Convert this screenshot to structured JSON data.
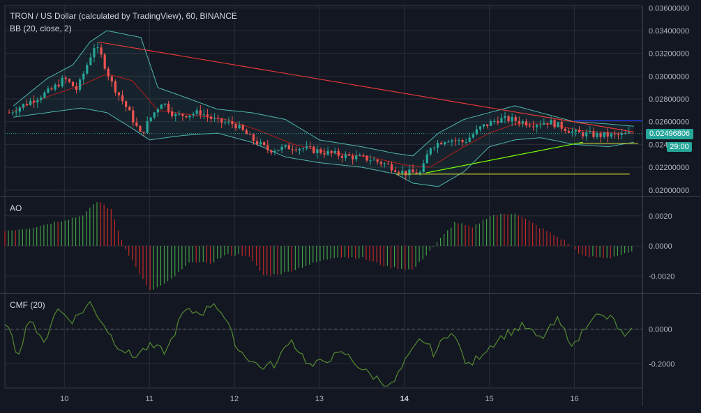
{
  "header": {
    "title": "TRON / US Dollar (calculated by TradingView), 60, BINANCE",
    "bb_label": "BB (20, close, 2)",
    "ao_label": "AO",
    "cmf_label": "CMF (20)"
  },
  "price_tag": "0.02496806",
  "countdown_tag": "29:00",
  "colors": {
    "background": "#131722",
    "grid": "#2a2e39",
    "up": "#26a69a",
    "down": "#ef5350",
    "bb_band": "#4db6ac",
    "bb_basis": "#b71c1c",
    "trend_red": "#e53935",
    "trend_green": "#76ff03",
    "support_yellow": "#c0ca33",
    "ao_up": "#43a047",
    "ao_down": "#c62828",
    "cmf": "#558b2f",
    "blue_line": "#1e3cff"
  },
  "chart_data": [
    {
      "type": "candlestick",
      "title": "TRON / US Dollar (calculated by TradingView), 60, BINANCE",
      "indicator": "BB (20, close, 2)",
      "x_tick_labels": [
        "10",
        "11",
        "12",
        "13",
        "14",
        "15",
        "16"
      ],
      "y_tick_labels": [
        "0.03600000",
        "0.03400000",
        "0.03200000",
        "0.03000000",
        "0.02800000",
        "0.02600000",
        "0.02400000",
        "0.02200000",
        "0.02000000"
      ],
      "ylim": [
        0.0195,
        0.0362
      ],
      "x_range_days": [
        9.3,
        16.8
      ],
      "last_price": 0.02496806,
      "candle_anchors": [
        [
          9.35,
          0.0268
        ],
        [
          9.7,
          0.0282
        ],
        [
          9.85,
          0.0288
        ],
        [
          10.0,
          0.0298
        ],
        [
          10.15,
          0.0288
        ],
        [
          10.35,
          0.0326
        ],
        [
          10.42,
          0.032
        ],
        [
          10.55,
          0.0295
        ],
        [
          10.75,
          0.027
        ],
        [
          10.9,
          0.0248
        ],
        [
          11.0,
          0.0262
        ],
        [
          11.15,
          0.0278
        ],
        [
          11.3,
          0.0265
        ],
        [
          11.6,
          0.0268
        ],
        [
          11.8,
          0.026
        ],
        [
          12.0,
          0.0258
        ],
        [
          12.2,
          0.0245
        ],
        [
          12.4,
          0.0235
        ],
        [
          12.7,
          0.0238
        ],
        [
          13.0,
          0.0234
        ],
        [
          13.3,
          0.023
        ],
        [
          13.6,
          0.0227
        ],
        [
          13.8,
          0.0222
        ],
        [
          14.0,
          0.0215
        ],
        [
          14.2,
          0.0215
        ],
        [
          14.3,
          0.0238
        ],
        [
          14.5,
          0.0245
        ],
        [
          14.7,
          0.0242
        ],
        [
          14.9,
          0.0255
        ],
        [
          15.1,
          0.0262
        ],
        [
          15.25,
          0.0262
        ],
        [
          15.5,
          0.0258
        ],
        [
          15.7,
          0.026
        ],
        [
          15.9,
          0.0254
        ],
        [
          16.0,
          0.025
        ],
        [
          16.3,
          0.0248
        ],
        [
          16.55,
          0.0248
        ],
        [
          16.7,
          0.02497
        ]
      ],
      "bb_upper_anchors": [
        [
          9.4,
          0.0274
        ],
        [
          9.8,
          0.0298
        ],
        [
          10.1,
          0.031
        ],
        [
          10.3,
          0.033
        ],
        [
          10.5,
          0.034
        ],
        [
          10.9,
          0.0334
        ],
        [
          11.1,
          0.029
        ],
        [
          11.4,
          0.0282
        ],
        [
          11.8,
          0.0271
        ],
        [
          12.2,
          0.0268
        ],
        [
          12.6,
          0.0262
        ],
        [
          13.0,
          0.0244
        ],
        [
          13.5,
          0.0238
        ],
        [
          13.9,
          0.0232
        ],
        [
          14.1,
          0.023
        ],
        [
          14.4,
          0.025
        ],
        [
          14.7,
          0.0262
        ],
        [
          15.0,
          0.0268
        ],
        [
          15.3,
          0.0274
        ],
        [
          15.6,
          0.0268
        ],
        [
          16.0,
          0.026
        ],
        [
          16.4,
          0.0258
        ],
        [
          16.7,
          0.0256
        ]
      ],
      "bb_lower_anchors": [
        [
          9.4,
          0.0264
        ],
        [
          9.8,
          0.0268
        ],
        [
          10.2,
          0.0272
        ],
        [
          10.5,
          0.0268
        ],
        [
          10.8,
          0.0254
        ],
        [
          11.0,
          0.0244
        ],
        [
          11.4,
          0.0248
        ],
        [
          11.8,
          0.025
        ],
        [
          12.2,
          0.0242
        ],
        [
          12.6,
          0.0229
        ],
        [
          13.0,
          0.0224
        ],
        [
          13.5,
          0.022
        ],
        [
          13.9,
          0.0214
        ],
        [
          14.1,
          0.0206
        ],
        [
          14.4,
          0.0203
        ],
        [
          14.7,
          0.0216
        ],
        [
          15.0,
          0.0238
        ],
        [
          15.3,
          0.0244
        ],
        [
          15.6,
          0.0246
        ],
        [
          16.0,
          0.024
        ],
        [
          16.4,
          0.0238
        ],
        [
          16.7,
          0.0242
        ]
      ],
      "bb_basis_anchors": [
        [
          9.4,
          0.0269
        ],
        [
          9.8,
          0.0282
        ],
        [
          10.2,
          0.0292
        ],
        [
          10.5,
          0.0302
        ],
        [
          10.8,
          0.0296
        ],
        [
          11.1,
          0.027
        ],
        [
          11.5,
          0.0266
        ],
        [
          11.9,
          0.0262
        ],
        [
          12.3,
          0.0252
        ],
        [
          12.7,
          0.024
        ],
        [
          13.1,
          0.0233
        ],
        [
          13.6,
          0.0229
        ],
        [
          14.0,
          0.0222
        ],
        [
          14.3,
          0.022
        ],
        [
          14.7,
          0.0238
        ],
        [
          15.0,
          0.025
        ],
        [
          15.3,
          0.0258
        ],
        [
          15.7,
          0.0258
        ],
        [
          16.1,
          0.0252
        ],
        [
          16.5,
          0.025
        ],
        [
          16.7,
          0.025
        ]
      ],
      "trendlines": [
        {
          "color": "red",
          "from": [
            10.4,
            0.033
          ],
          "to": [
            16.7,
            0.0251
          ]
        },
        {
          "color": "green",
          "from": [
            14.25,
            0.0215
          ],
          "to": [
            16.1,
            0.0242
          ]
        },
        {
          "color": "yellow",
          "from": [
            13.9,
            0.0214
          ],
          "to": [
            16.65,
            0.0214
          ]
        },
        {
          "color": "yellow",
          "from": [
            16.05,
            0.0241
          ],
          "to": [
            16.75,
            0.0241
          ]
        },
        {
          "color": "blue",
          "from": [
            16.0,
            0.0261
          ],
          "to": [
            16.8,
            0.0261
          ]
        }
      ]
    },
    {
      "type": "bar",
      "title": "AO",
      "y_tick_labels": [
        "0.0020",
        "0.0000",
        "-0.0020"
      ],
      "ylim": [
        -0.0031,
        0.0032
      ],
      "anchors": [
        [
          9.3,
          0.001
        ],
        [
          9.6,
          0.0012
        ],
        [
          9.9,
          0.0016
        ],
        [
          10.2,
          0.002
        ],
        [
          10.4,
          0.003
        ],
        [
          10.55,
          0.0024
        ],
        [
          10.7,
          0.0
        ],
        [
          11.0,
          -0.003
        ],
        [
          11.2,
          -0.0025
        ],
        [
          11.5,
          -0.001
        ],
        [
          11.7,
          -0.0012
        ],
        [
          11.9,
          -0.0006
        ],
        [
          12.15,
          -0.0006
        ],
        [
          12.35,
          -0.002
        ],
        [
          12.6,
          -0.0018
        ],
        [
          12.9,
          -0.0012
        ],
        [
          13.2,
          -0.0007
        ],
        [
          13.5,
          -0.0008
        ],
        [
          13.8,
          -0.0014
        ],
        [
          14.1,
          -0.0016
        ],
        [
          14.35,
          0.0
        ],
        [
          14.6,
          0.0016
        ],
        [
          14.8,
          0.0012
        ],
        [
          15.0,
          0.002
        ],
        [
          15.3,
          0.0022
        ],
        [
          15.6,
          0.0012
        ],
        [
          15.9,
          0.0003
        ],
        [
          16.1,
          -0.0007
        ],
        [
          16.4,
          -0.0008
        ],
        [
          16.7,
          -0.0004
        ]
      ]
    },
    {
      "type": "line",
      "title": "CMF (20)",
      "y_tick_labels": [
        "0.0000",
        "-0.2000"
      ],
      "ylim": [
        -0.34,
        0.2
      ],
      "anchors": [
        [
          9.3,
          0.05
        ],
        [
          9.45,
          -0.15
        ],
        [
          9.6,
          0.08
        ],
        [
          9.75,
          -0.1
        ],
        [
          9.9,
          0.12
        ],
        [
          10.1,
          0.05
        ],
        [
          10.3,
          0.15
        ],
        [
          10.45,
          0.04
        ],
        [
          10.6,
          -0.08
        ],
        [
          10.8,
          -0.16
        ],
        [
          11.0,
          -0.1
        ],
        [
          11.2,
          -0.13
        ],
        [
          11.4,
          0.1
        ],
        [
          11.65,
          0.1
        ],
        [
          11.75,
          0.16
        ],
        [
          11.85,
          0.1
        ],
        [
          12.05,
          -0.12
        ],
        [
          12.3,
          -0.22
        ],
        [
          12.5,
          -0.2
        ],
        [
          12.65,
          -0.05
        ],
        [
          12.9,
          -0.22
        ],
        [
          13.1,
          -0.17
        ],
        [
          13.3,
          -0.14
        ],
        [
          13.55,
          -0.25
        ],
        [
          13.85,
          -0.33
        ],
        [
          14.0,
          -0.2
        ],
        [
          14.2,
          -0.05
        ],
        [
          14.35,
          -0.14
        ],
        [
          14.55,
          0.0
        ],
        [
          14.75,
          -0.22
        ],
        [
          14.95,
          -0.12
        ],
        [
          15.15,
          -0.04
        ],
        [
          15.4,
          0.02
        ],
        [
          15.6,
          -0.06
        ],
        [
          15.8,
          0.05
        ],
        [
          16.0,
          -0.1
        ],
        [
          16.2,
          0.08
        ],
        [
          16.45,
          0.06
        ],
        [
          16.6,
          -0.06
        ],
        [
          16.7,
          0.0
        ]
      ]
    }
  ]
}
